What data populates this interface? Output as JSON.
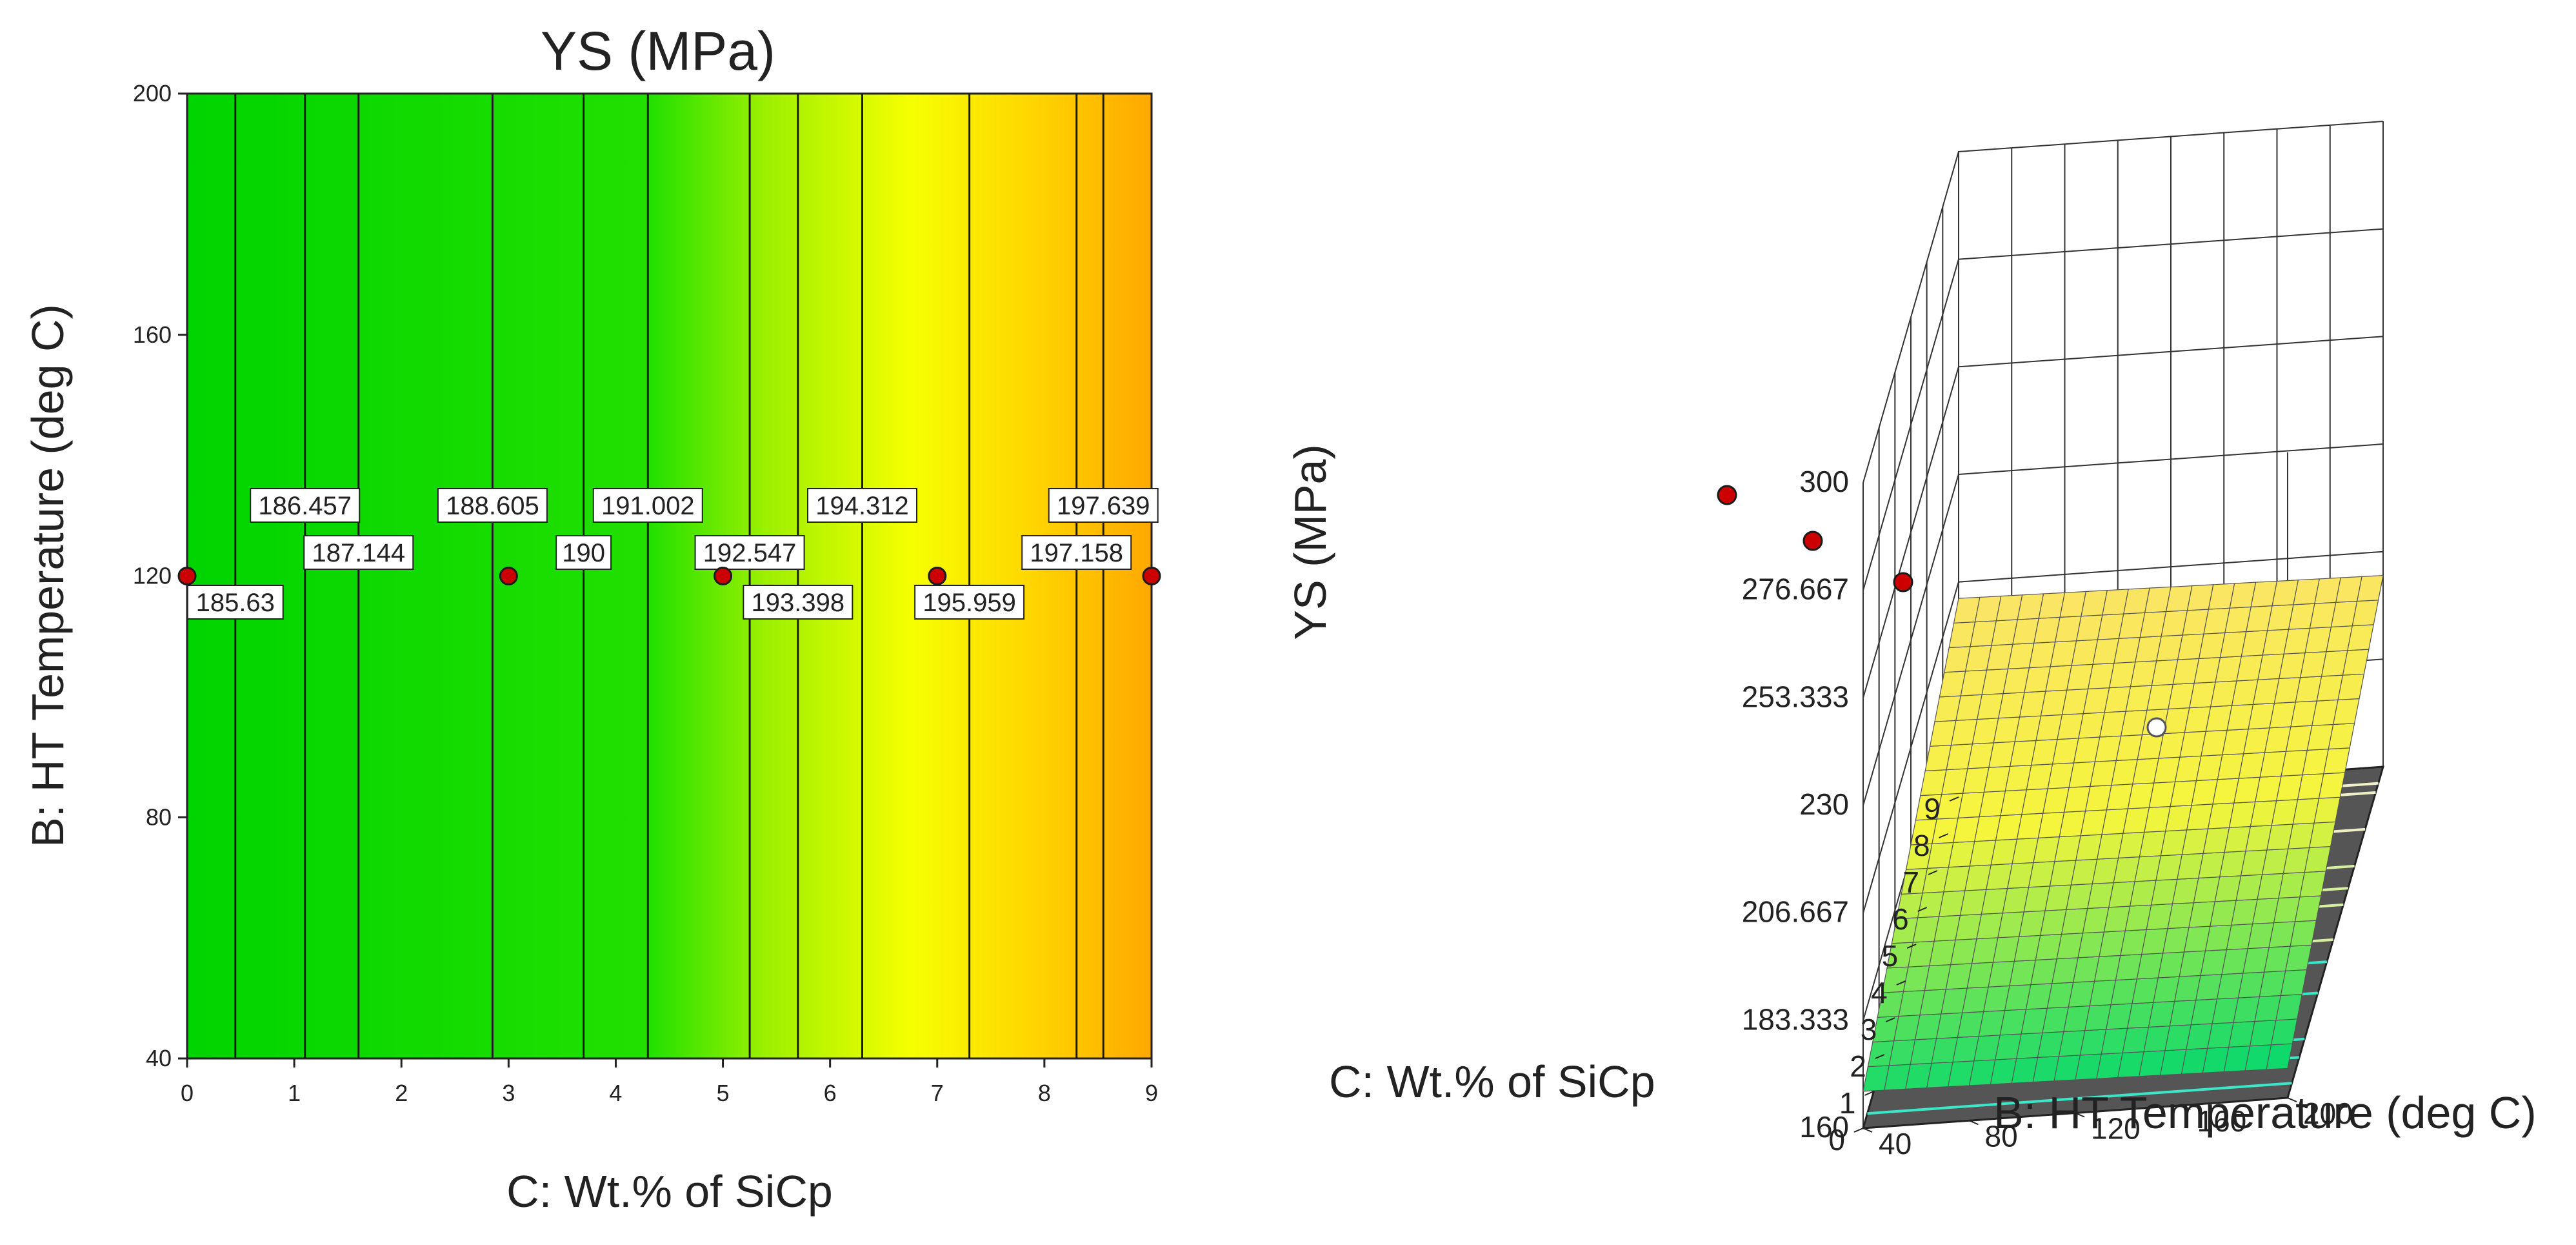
{
  "colors": {
    "low": "#00d400",
    "mid": "#f8ff00",
    "high": "#ffa800",
    "point": "#cc0000",
    "floor": "#555555"
  },
  "chart_data": [
    {
      "type": "contour",
      "title": "YS  (MPa)",
      "xlabel": "C: Wt.% of SiCp",
      "ylabel": "B: HT Temperature (deg C)",
      "xlim": [
        0,
        9
      ],
      "ylim": [
        40,
        200
      ],
      "xticks": [
        "0",
        "1",
        "2",
        "3",
        "4",
        "5",
        "6",
        "7",
        "8",
        "9"
      ],
      "yticks": [
        "40",
        "80",
        "120",
        "160",
        "200"
      ],
      "contour_lines": [
        {
          "label": "185.63",
          "x": 0.45
        },
        {
          "label": "186.457",
          "x": 1.1
        },
        {
          "label": "187.144",
          "x": 1.6
        },
        {
          "label": "188.605",
          "x": 2.85
        },
        {
          "label": "190",
          "x": 3.7
        },
        {
          "label": "191.002",
          "x": 4.3
        },
        {
          "label": "192.547",
          "x": 5.25
        },
        {
          "label": "193.398",
          "x": 5.7
        },
        {
          "label": "194.312",
          "x": 6.3
        },
        {
          "label": "195.959",
          "x": 7.3
        },
        {
          "label": "197.158",
          "x": 8.3
        },
        {
          "label": "197.639",
          "x": 8.55
        }
      ],
      "design_points": [
        {
          "x": 0,
          "y": 120
        },
        {
          "x": 3,
          "y": 120
        },
        {
          "x": 5,
          "y": 120
        },
        {
          "x": 7,
          "y": 120
        },
        {
          "x": 9,
          "y": 120
        }
      ]
    },
    {
      "type": "surface3d",
      "zlabel": "YS  (MPa)",
      "xlabel": "B: HT Temperature (deg C)",
      "ylabel": "C: Wt.% of SiCp",
      "zticks": [
        "160",
        "183.333",
        "206.667",
        "230",
        "253.333",
        "276.667",
        "300"
      ],
      "zlim": [
        160,
        300
      ],
      "xticks": [
        "40",
        "80",
        "120",
        "160",
        "200"
      ],
      "xlim": [
        40,
        200
      ],
      "yticks": [
        "0",
        "1",
        "2",
        "3",
        "4",
        "5",
        "6",
        "7",
        "8",
        "9"
      ],
      "ylim": [
        0,
        9
      ]
    }
  ]
}
